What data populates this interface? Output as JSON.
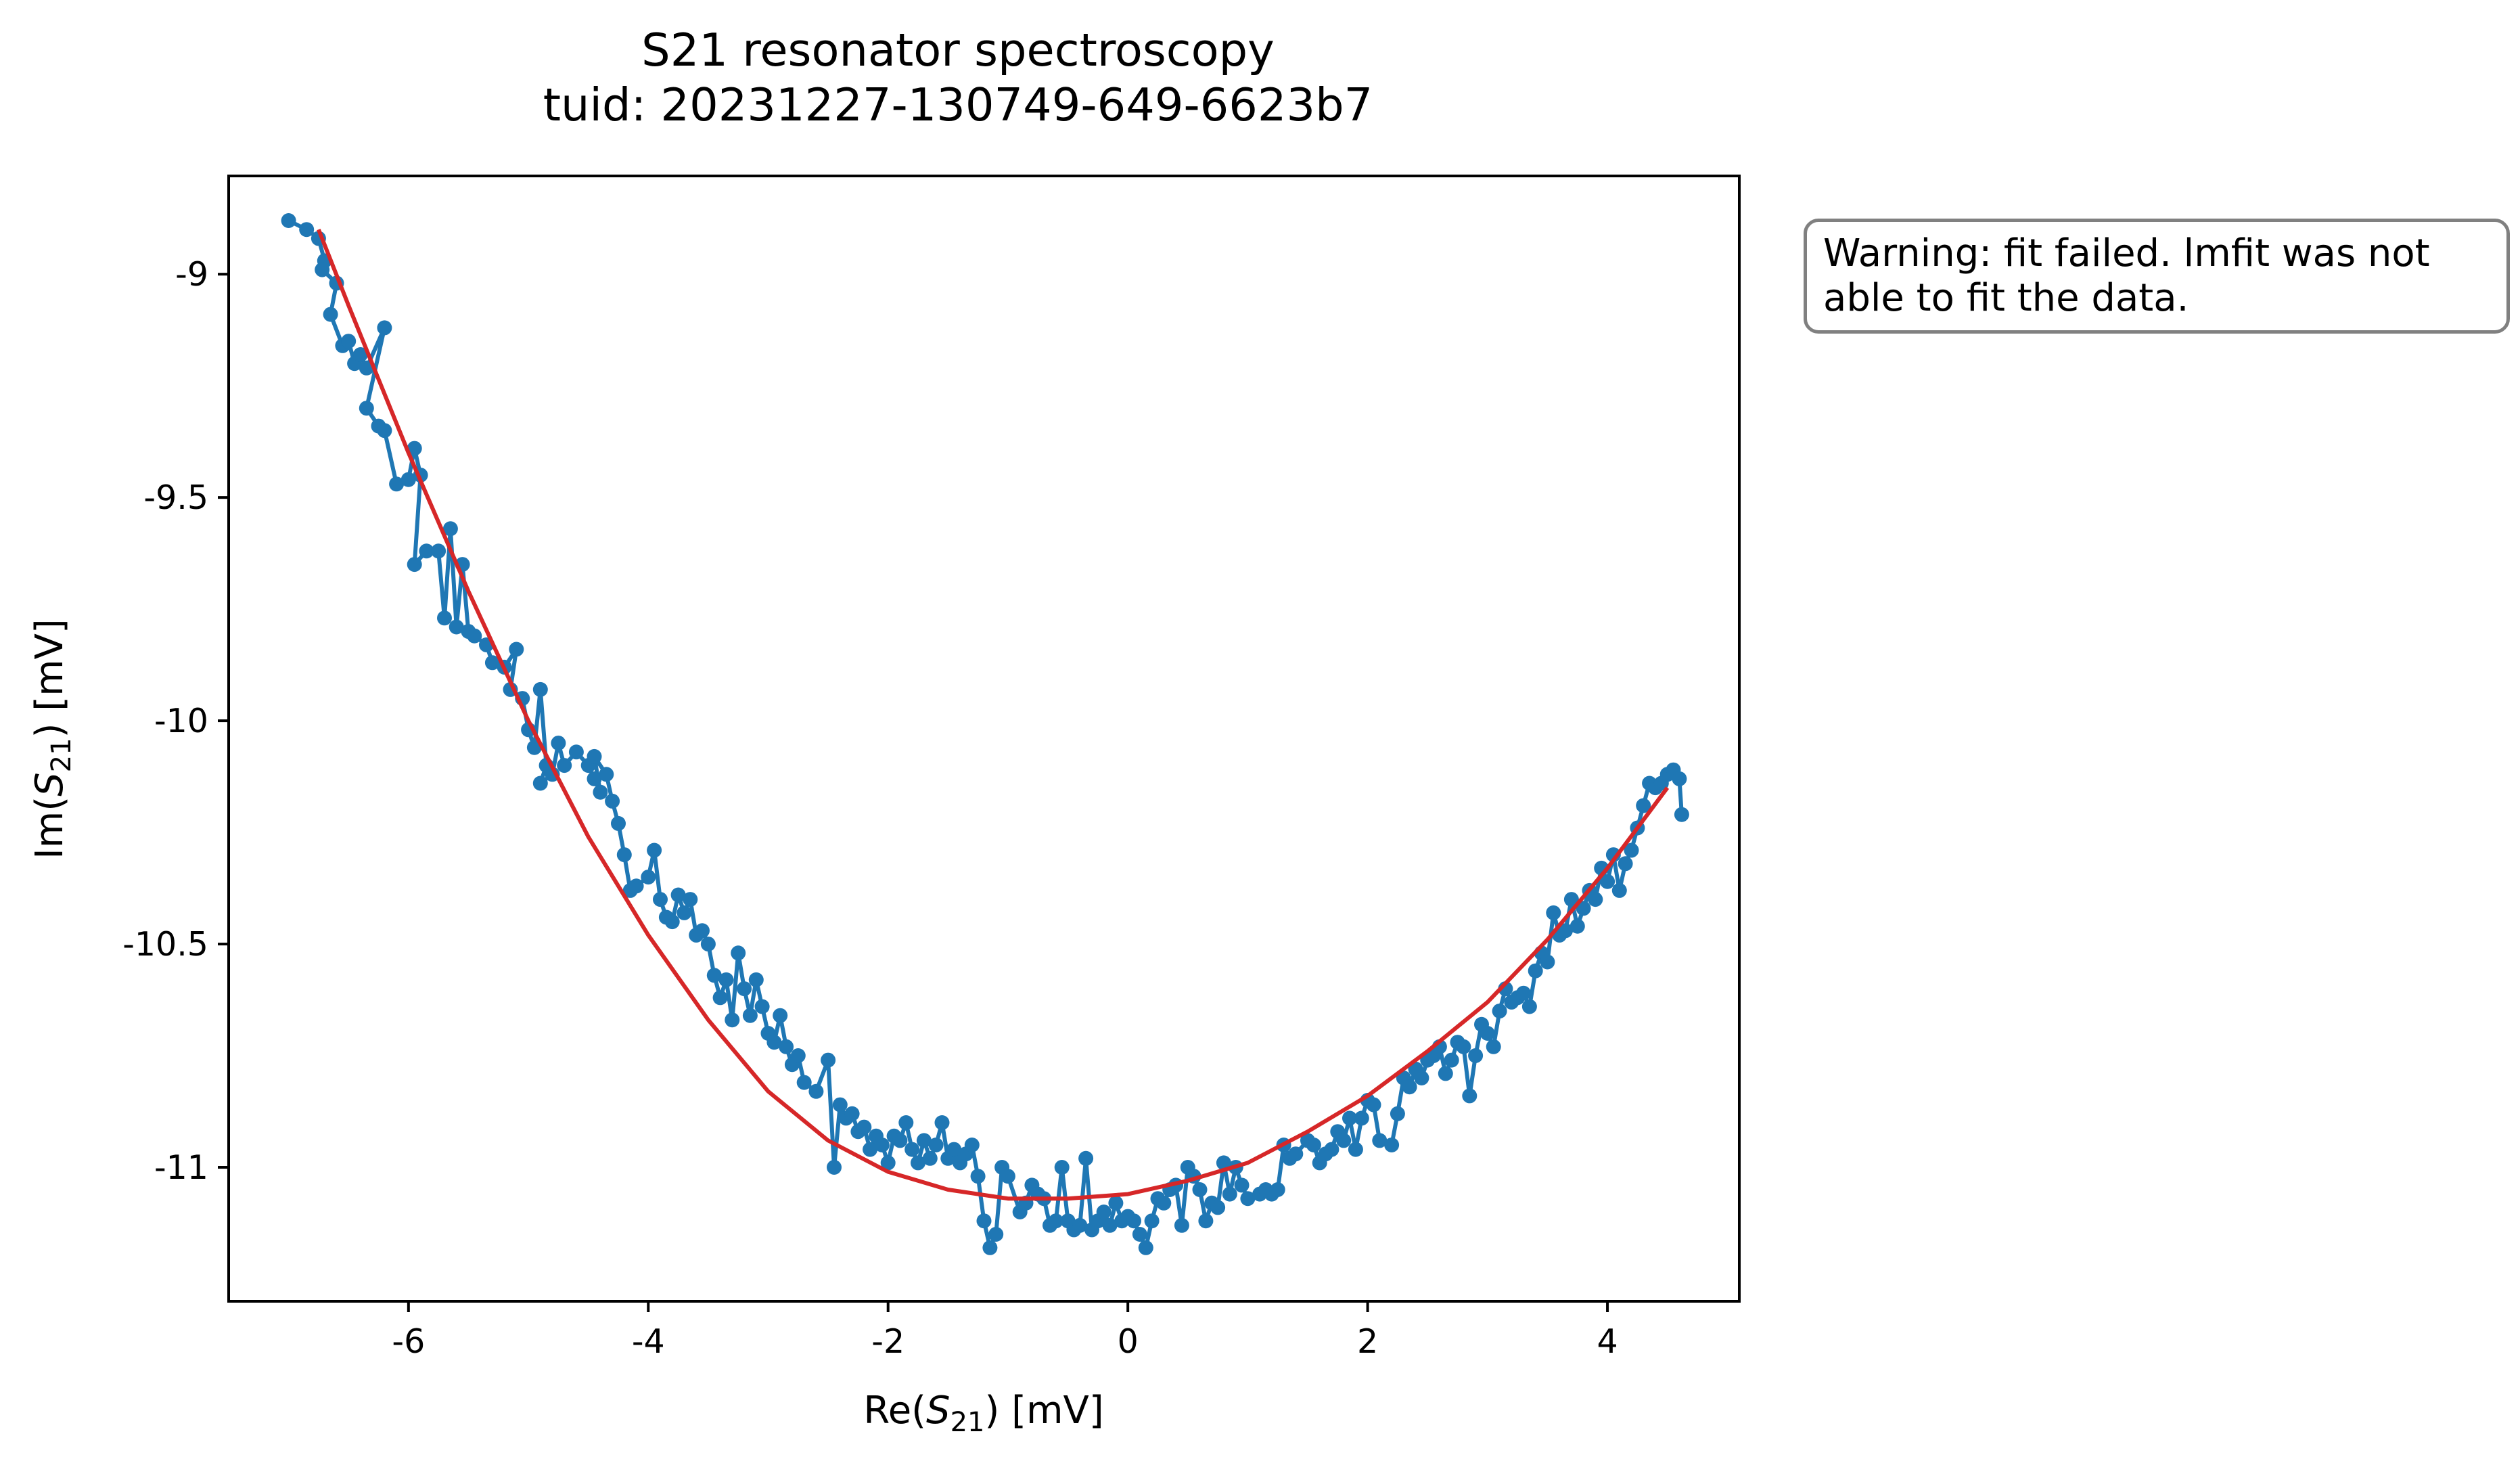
{
  "chart_data": {
    "type": "scatter",
    "title": "S21 resonator spectroscopy",
    "subtitle": "tuid: 20231227-130749-649-6623b7",
    "xlabel": {
      "pre": "Re(",
      "var": "S",
      "sub": "21",
      "post": ") [mV]"
    },
    "ylabel": {
      "pre": "Im(",
      "var": "S",
      "sub": "21",
      "post": ") [mV]"
    },
    "xlim": [
      -7.5,
      5.1
    ],
    "ylim": [
      -11.3,
      -8.78
    ],
    "xticks": [
      -6,
      -4,
      -2,
      0,
      2,
      4
    ],
    "xtick_labels": [
      "-6",
      "-4",
      "-2",
      "0",
      "2",
      "4"
    ],
    "yticks": [
      -9,
      -9.5,
      -10,
      -10.5,
      -11
    ],
    "ytick_labels": [
      "-9",
      "-9.5",
      "-10",
      "-10.5",
      "-11"
    ],
    "grid": false,
    "colors": {
      "data": "#1f77b4",
      "fit": "#d62728",
      "frame": "#000000",
      "annotation_border": "#808080"
    },
    "series": [
      {
        "style": "line+markers",
        "points": [
          [
            -7.0,
            -8.88
          ],
          [
            -6.85,
            -8.9
          ],
          [
            -6.75,
            -8.92
          ],
          [
            -6.7,
            -8.97
          ],
          [
            -6.72,
            -8.99
          ],
          [
            -6.6,
            -9.02
          ],
          [
            -6.65,
            -9.09
          ],
          [
            -6.55,
            -9.16
          ],
          [
            -6.5,
            -9.15
          ],
          [
            -6.45,
            -9.2
          ],
          [
            -6.4,
            -9.18
          ],
          [
            -6.35,
            -9.21
          ],
          [
            -6.2,
            -9.12
          ],
          [
            -6.35,
            -9.3
          ],
          [
            -6.25,
            -9.34
          ],
          [
            -6.2,
            -9.35
          ],
          [
            -6.1,
            -9.47
          ],
          [
            -6.0,
            -9.46
          ],
          [
            -5.95,
            -9.39
          ],
          [
            -5.9,
            -9.45
          ],
          [
            -5.95,
            -9.65
          ],
          [
            -5.85,
            -9.62
          ],
          [
            -5.75,
            -9.62
          ],
          [
            -5.7,
            -9.77
          ],
          [
            -5.65,
            -9.57
          ],
          [
            -5.6,
            -9.79
          ],
          [
            -5.55,
            -9.65
          ],
          [
            -5.5,
            -9.8
          ],
          [
            -5.45,
            -9.81
          ],
          [
            -5.35,
            -9.83
          ],
          [
            -5.3,
            -9.87
          ],
          [
            -5.2,
            -9.88
          ],
          [
            -5.1,
            -9.84
          ],
          [
            -5.15,
            -9.93
          ],
          [
            -5.05,
            -9.95
          ],
          [
            -5.0,
            -10.02
          ],
          [
            -4.95,
            -10.06
          ],
          [
            -4.9,
            -9.93
          ],
          [
            -4.85,
            -10.1
          ],
          [
            -4.9,
            -10.14
          ],
          [
            -4.8,
            -10.12
          ],
          [
            -4.75,
            -10.05
          ],
          [
            -4.7,
            -10.1
          ],
          [
            -4.6,
            -10.07
          ],
          [
            -4.5,
            -10.1
          ],
          [
            -4.45,
            -10.13
          ],
          [
            -4.4,
            -10.16
          ],
          [
            -4.45,
            -10.08
          ],
          [
            -4.35,
            -10.12
          ],
          [
            -4.3,
            -10.18
          ],
          [
            -4.25,
            -10.23
          ],
          [
            -4.2,
            -10.3
          ],
          [
            -4.15,
            -10.38
          ],
          [
            -4.1,
            -10.37
          ],
          [
            -4.0,
            -10.35
          ],
          [
            -3.95,
            -10.29
          ],
          [
            -3.9,
            -10.4
          ],
          [
            -3.85,
            -10.44
          ],
          [
            -3.8,
            -10.45
          ],
          [
            -3.75,
            -10.39
          ],
          [
            -3.7,
            -10.43
          ],
          [
            -3.65,
            -10.4
          ],
          [
            -3.6,
            -10.48
          ],
          [
            -3.55,
            -10.47
          ],
          [
            -3.5,
            -10.5
          ],
          [
            -3.45,
            -10.57
          ],
          [
            -3.4,
            -10.62
          ],
          [
            -3.35,
            -10.58
          ],
          [
            -3.3,
            -10.67
          ],
          [
            -3.25,
            -10.52
          ],
          [
            -3.2,
            -10.6
          ],
          [
            -3.15,
            -10.66
          ],
          [
            -3.1,
            -10.58
          ],
          [
            -3.05,
            -10.64
          ],
          [
            -3.0,
            -10.7
          ],
          [
            -2.95,
            -10.72
          ],
          [
            -2.9,
            -10.66
          ],
          [
            -2.85,
            -10.73
          ],
          [
            -2.8,
            -10.77
          ],
          [
            -2.75,
            -10.75
          ],
          [
            -2.7,
            -10.81
          ],
          [
            -2.6,
            -10.83
          ],
          [
            -2.5,
            -10.76
          ],
          [
            -2.45,
            -11.0
          ],
          [
            -2.4,
            -10.86
          ],
          [
            -2.35,
            -10.89
          ],
          [
            -2.3,
            -10.88
          ],
          [
            -2.25,
            -10.92
          ],
          [
            -2.2,
            -10.91
          ],
          [
            -2.15,
            -10.96
          ],
          [
            -2.1,
            -10.93
          ],
          [
            -2.05,
            -10.95
          ],
          [
            -2.0,
            -10.99
          ],
          [
            -1.95,
            -10.93
          ],
          [
            -1.9,
            -10.94
          ],
          [
            -1.85,
            -10.9
          ],
          [
            -1.8,
            -10.96
          ],
          [
            -1.75,
            -10.99
          ],
          [
            -1.7,
            -10.94
          ],
          [
            -1.65,
            -10.98
          ],
          [
            -1.6,
            -10.95
          ],
          [
            -1.55,
            -10.9
          ],
          [
            -1.5,
            -10.98
          ],
          [
            -1.45,
            -10.96
          ],
          [
            -1.4,
            -10.99
          ],
          [
            -1.35,
            -10.97
          ],
          [
            -1.3,
            -10.95
          ],
          [
            -1.25,
            -11.02
          ],
          [
            -1.2,
            -11.12
          ],
          [
            -1.15,
            -11.18
          ],
          [
            -1.1,
            -11.15
          ],
          [
            -1.05,
            -11.0
          ],
          [
            -1.0,
            -11.02
          ],
          [
            -0.9,
            -11.1
          ],
          [
            -0.85,
            -11.08
          ],
          [
            -0.8,
            -11.04
          ],
          [
            -0.75,
            -11.06
          ],
          [
            -0.7,
            -11.07
          ],
          [
            -0.65,
            -11.13
          ],
          [
            -0.6,
            -11.12
          ],
          [
            -0.55,
            -11.0
          ],
          [
            -0.5,
            -11.12
          ],
          [
            -0.45,
            -11.14
          ],
          [
            -0.4,
            -11.13
          ],
          [
            -0.35,
            -10.98
          ],
          [
            -0.3,
            -11.14
          ],
          [
            -0.25,
            -11.12
          ],
          [
            -0.2,
            -11.1
          ],
          [
            -0.15,
            -11.13
          ],
          [
            -0.1,
            -11.08
          ],
          [
            -0.05,
            -11.12
          ],
          [
            0.0,
            -11.11
          ],
          [
            0.05,
            -11.12
          ],
          [
            0.1,
            -11.15
          ],
          [
            0.15,
            -11.18
          ],
          [
            0.2,
            -11.12
          ],
          [
            0.25,
            -11.07
          ],
          [
            0.3,
            -11.08
          ],
          [
            0.35,
            -11.05
          ],
          [
            0.4,
            -11.04
          ],
          [
            0.45,
            -11.13
          ],
          [
            0.5,
            -11.0
          ],
          [
            0.55,
            -11.02
          ],
          [
            0.6,
            -11.05
          ],
          [
            0.65,
            -11.12
          ],
          [
            0.7,
            -11.08
          ],
          [
            0.75,
            -11.09
          ],
          [
            0.8,
            -10.99
          ],
          [
            0.85,
            -11.06
          ],
          [
            0.9,
            -11.0
          ],
          [
            0.95,
            -11.04
          ],
          [
            1.0,
            -11.07
          ],
          [
            1.1,
            -11.06
          ],
          [
            1.15,
            -11.05
          ],
          [
            1.2,
            -11.06
          ],
          [
            1.25,
            -11.05
          ],
          [
            1.3,
            -10.95
          ],
          [
            1.35,
            -10.98
          ],
          [
            1.4,
            -10.97
          ],
          [
            1.5,
            -10.94
          ],
          [
            1.55,
            -10.95
          ],
          [
            1.6,
            -10.99
          ],
          [
            1.65,
            -10.97
          ],
          [
            1.7,
            -10.96
          ],
          [
            1.75,
            -10.92
          ],
          [
            1.8,
            -10.94
          ],
          [
            1.85,
            -10.89
          ],
          [
            1.9,
            -10.96
          ],
          [
            1.95,
            -10.89
          ],
          [
            2.0,
            -10.85
          ],
          [
            2.05,
            -10.86
          ],
          [
            2.1,
            -10.94
          ],
          [
            2.2,
            -10.95
          ],
          [
            2.25,
            -10.88
          ],
          [
            2.3,
            -10.8
          ],
          [
            2.35,
            -10.82
          ],
          [
            2.4,
            -10.78
          ],
          [
            2.45,
            -10.8
          ],
          [
            2.5,
            -10.76
          ],
          [
            2.55,
            -10.75
          ],
          [
            2.6,
            -10.73
          ],
          [
            2.65,
            -10.79
          ],
          [
            2.7,
            -10.76
          ],
          [
            2.75,
            -10.72
          ],
          [
            2.8,
            -10.73
          ],
          [
            2.85,
            -10.84
          ],
          [
            2.9,
            -10.75
          ],
          [
            2.95,
            -10.68
          ],
          [
            3.0,
            -10.7
          ],
          [
            3.05,
            -10.73
          ],
          [
            3.1,
            -10.65
          ],
          [
            3.15,
            -10.6
          ],
          [
            3.2,
            -10.63
          ],
          [
            3.25,
            -10.62
          ],
          [
            3.3,
            -10.61
          ],
          [
            3.35,
            -10.64
          ],
          [
            3.4,
            -10.56
          ],
          [
            3.45,
            -10.52
          ],
          [
            3.5,
            -10.54
          ],
          [
            3.55,
            -10.43
          ],
          [
            3.6,
            -10.48
          ],
          [
            3.65,
            -10.47
          ],
          [
            3.7,
            -10.4
          ],
          [
            3.75,
            -10.46
          ],
          [
            3.8,
            -10.42
          ],
          [
            3.85,
            -10.38
          ],
          [
            3.9,
            -10.4
          ],
          [
            3.95,
            -10.33
          ],
          [
            4.0,
            -10.36
          ],
          [
            4.05,
            -10.3
          ],
          [
            4.1,
            -10.38
          ],
          [
            4.15,
            -10.32
          ],
          [
            4.2,
            -10.29
          ],
          [
            4.25,
            -10.24
          ],
          [
            4.3,
            -10.19
          ],
          [
            4.35,
            -10.14
          ],
          [
            4.4,
            -10.15
          ],
          [
            4.45,
            -10.14
          ],
          [
            4.5,
            -10.12
          ],
          [
            4.55,
            -10.11
          ],
          [
            4.6,
            -10.13
          ],
          [
            4.62,
            -10.21
          ]
        ]
      },
      {
        "style": "line",
        "points": [
          [
            -6.75,
            -8.9
          ],
          [
            -6.5,
            -9.07
          ],
          [
            -6.0,
            -9.4
          ],
          [
            -5.5,
            -9.71
          ],
          [
            -5.0,
            -10.0
          ],
          [
            -4.5,
            -10.26
          ],
          [
            -4.0,
            -10.48
          ],
          [
            -3.5,
            -10.67
          ],
          [
            -3.0,
            -10.83
          ],
          [
            -2.5,
            -10.94
          ],
          [
            -2.0,
            -11.01
          ],
          [
            -1.5,
            -11.05
          ],
          [
            -1.0,
            -11.07
          ],
          [
            -0.5,
            -11.07
          ],
          [
            0.0,
            -11.06
          ],
          [
            0.5,
            -11.03
          ],
          [
            1.0,
            -10.99
          ],
          [
            1.5,
            -10.92
          ],
          [
            2.0,
            -10.84
          ],
          [
            2.5,
            -10.74
          ],
          [
            3.0,
            -10.63
          ],
          [
            3.5,
            -10.49
          ],
          [
            4.0,
            -10.33
          ],
          [
            4.5,
            -10.15
          ]
        ]
      }
    ]
  },
  "annotation": {
    "text": "Warning: fit failed. lmfit was not\nable to fit the data."
  }
}
